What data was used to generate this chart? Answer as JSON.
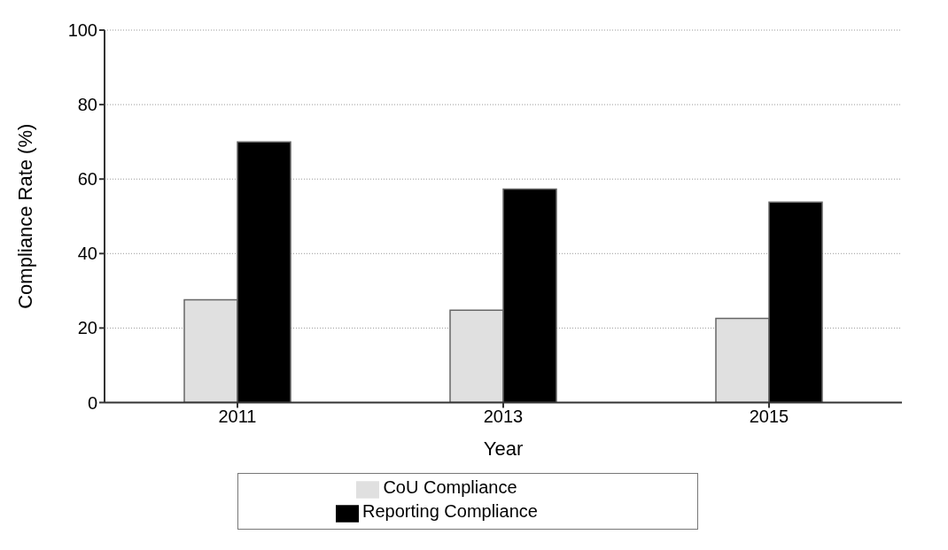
{
  "chart_data": {
    "type": "bar",
    "xlabel": "Year",
    "ylabel": "Compliance Rate (%)",
    "categories": [
      "2011",
      "2013",
      "2015"
    ],
    "series": [
      {
        "name": "CoU Compliance",
        "color": "#e0e0e0",
        "values": [
          27.6,
          24.8,
          22.6
        ]
      },
      {
        "name": "Reporting Compliance",
        "color": "#000000",
        "values": [
          70,
          57.3,
          53.8
        ]
      }
    ],
    "ylim": [
      0,
      100
    ],
    "yticks": [
      0,
      20,
      40,
      60,
      80,
      100
    ],
    "grid": "y",
    "legend": "bottom"
  }
}
